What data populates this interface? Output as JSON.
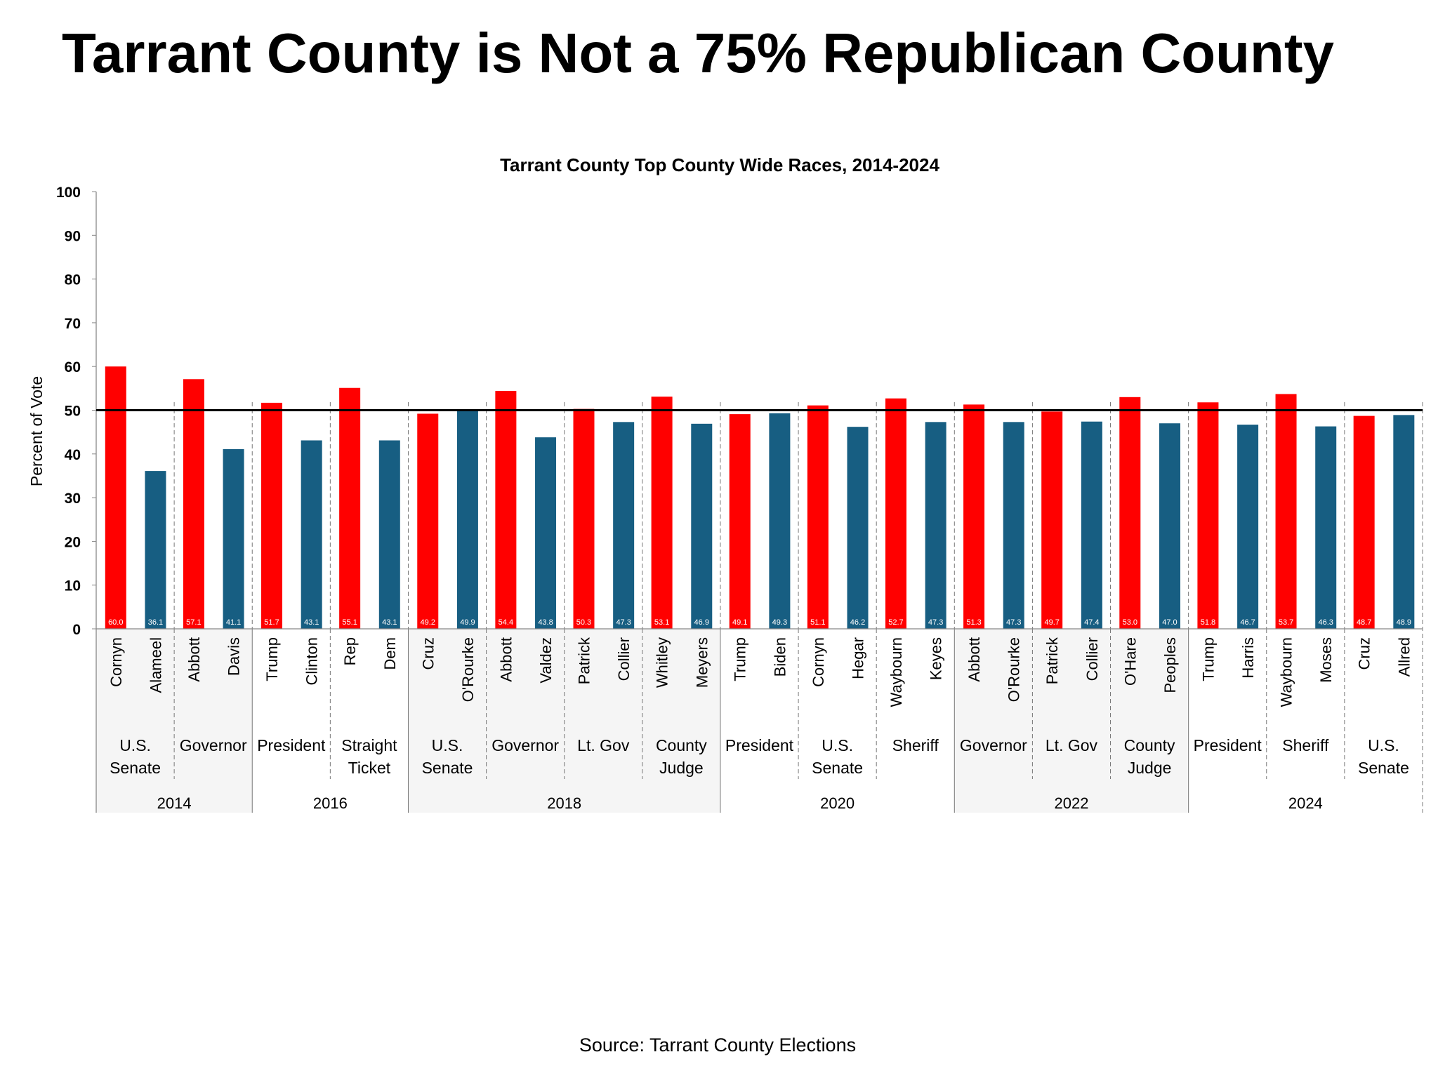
{
  "page_title": "Tarrant County is Not a 75% Republican County",
  "source": "Source: Tarrant County Elections",
  "colors": {
    "republican": "#ff0000",
    "democrat": "#175e82",
    "reference_line": "#000000",
    "shade": "#f5f5f5"
  },
  "chart_data": {
    "type": "bar",
    "title": "Tarrant County Top County Wide Races, 2014-2024",
    "ylabel": "Percent of Vote",
    "xlabel": "",
    "ylim": [
      0,
      100
    ],
    "yticks": [
      0,
      10,
      20,
      30,
      40,
      50,
      60,
      70,
      80,
      90,
      100
    ],
    "reference_line": 50,
    "grid": false,
    "years": [
      {
        "label": "2014",
        "races": [
          {
            "label": [
              "U.S.",
              "Senate"
            ],
            "candidates": [
              {
                "name": "Cornyn",
                "party": "R",
                "value": 60.0
              },
              {
                "name": "Alameel",
                "party": "D",
                "value": 36.1
              }
            ]
          },
          {
            "label": [
              "Governor"
            ],
            "candidates": [
              {
                "name": "Abbott",
                "party": "R",
                "value": 57.1
              },
              {
                "name": "Davis",
                "party": "D",
                "value": 41.1
              }
            ]
          }
        ]
      },
      {
        "label": "2016",
        "races": [
          {
            "label": [
              "President"
            ],
            "candidates": [
              {
                "name": "Trump",
                "party": "R",
                "value": 51.7
              },
              {
                "name": "Clinton",
                "party": "D",
                "value": 43.1
              }
            ]
          },
          {
            "label": [
              "Straight",
              "Ticket"
            ],
            "candidates": [
              {
                "name": "Rep",
                "party": "R",
                "value": 55.1
              },
              {
                "name": "Dem",
                "party": "D",
                "value": 43.1
              }
            ]
          }
        ]
      },
      {
        "label": "2018",
        "races": [
          {
            "label": [
              "U.S.",
              "Senate"
            ],
            "candidates": [
              {
                "name": "Cruz",
                "party": "R",
                "value": 49.2
              },
              {
                "name": "O'Rourke",
                "party": "D",
                "value": 49.9
              }
            ]
          },
          {
            "label": [
              "Governor"
            ],
            "candidates": [
              {
                "name": "Abbott",
                "party": "R",
                "value": 54.4
              },
              {
                "name": "Valdez",
                "party": "D",
                "value": 43.8
              }
            ]
          },
          {
            "label": [
              "Lt. Gov"
            ],
            "candidates": [
              {
                "name": "Patrick",
                "party": "R",
                "value": 50.3
              },
              {
                "name": "Collier",
                "party": "D",
                "value": 47.3
              }
            ]
          },
          {
            "label": [
              "County",
              "Judge"
            ],
            "candidates": [
              {
                "name": "Whitley",
                "party": "R",
                "value": 53.1
              },
              {
                "name": "Meyers",
                "party": "D",
                "value": 46.9
              }
            ]
          }
        ]
      },
      {
        "label": "2020",
        "races": [
          {
            "label": [
              "President"
            ],
            "candidates": [
              {
                "name": "Trump",
                "party": "R",
                "value": 49.1
              },
              {
                "name": "Biden",
                "party": "D",
                "value": 49.3
              }
            ]
          },
          {
            "label": [
              "U.S.",
              "Senate"
            ],
            "candidates": [
              {
                "name": "Cornyn",
                "party": "R",
                "value": 51.1
              },
              {
                "name": "Hegar",
                "party": "D",
                "value": 46.2
              }
            ]
          },
          {
            "label": [
              "Sheriff"
            ],
            "candidates": [
              {
                "name": "Waybourn",
                "party": "R",
                "value": 52.7
              },
              {
                "name": "Keyes",
                "party": "D",
                "value": 47.3
              }
            ]
          }
        ]
      },
      {
        "label": "2022",
        "races": [
          {
            "label": [
              "Governor"
            ],
            "candidates": [
              {
                "name": "Abbott",
                "party": "R",
                "value": 51.3
              },
              {
                "name": "O'Rourke",
                "party": "D",
                "value": 47.3
              }
            ]
          },
          {
            "label": [
              "Lt. Gov"
            ],
            "candidates": [
              {
                "name": "Patrick",
                "party": "R",
                "value": 49.7
              },
              {
                "name": "Collier",
                "party": "D",
                "value": 47.4
              }
            ]
          },
          {
            "label": [
              "County",
              "Judge"
            ],
            "candidates": [
              {
                "name": "O'Hare",
                "party": "R",
                "value": 53.0
              },
              {
                "name": "Peoples",
                "party": "D",
                "value": 47.0
              }
            ]
          }
        ]
      },
      {
        "label": "2024",
        "races": [
          {
            "label": [
              "President"
            ],
            "candidates": [
              {
                "name": "Trump",
                "party": "R",
                "value": 51.8
              },
              {
                "name": "Harris",
                "party": "D",
                "value": 46.7
              }
            ]
          },
          {
            "label": [
              "Sheriff"
            ],
            "candidates": [
              {
                "name": "Waybourn",
                "party": "R",
                "value": 53.7
              },
              {
                "name": "Moses",
                "party": "D",
                "value": 46.3
              }
            ]
          },
          {
            "label": [
              "U.S.",
              "Senate"
            ],
            "candidates": [
              {
                "name": "Cruz",
                "party": "R",
                "value": 48.7
              },
              {
                "name": "Allred",
                "party": "D",
                "value": 48.9
              }
            ]
          }
        ]
      }
    ]
  }
}
